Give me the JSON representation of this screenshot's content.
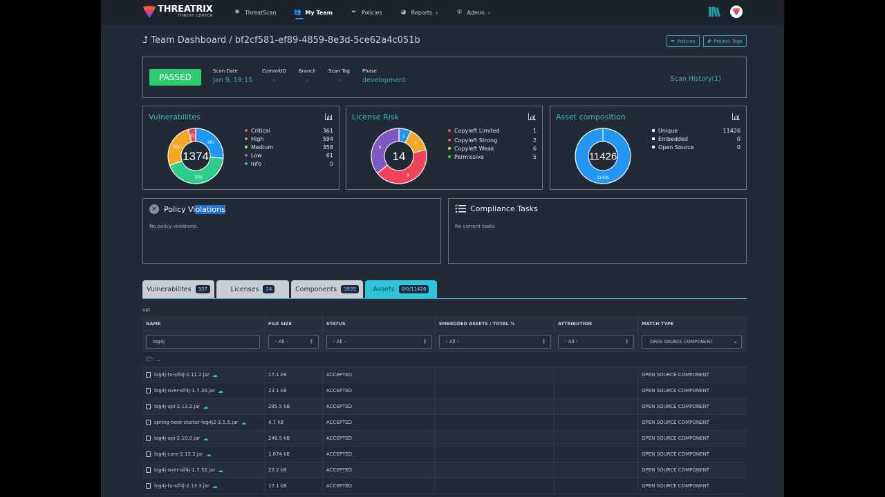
{
  "brand": {
    "title": "THREATRIX",
    "subtitle": "THREAT CENTER"
  },
  "nav": [
    {
      "label": "ThreatScan",
      "icon": "brain-icon"
    },
    {
      "label": "My Team",
      "icon": "users-icon",
      "active": true
    },
    {
      "label": "Policies",
      "icon": "feather-icon"
    },
    {
      "label": "Reports",
      "icon": "pie-chart-icon",
      "chevron": true
    },
    {
      "label": "Admin",
      "icon": "users-cog-icon",
      "chevron": true
    }
  ],
  "header": {
    "title": "Team Dashboard / bf2cf581-ef89-4859-8e3d-5ce62a4c051b",
    "policies_button": "Policies",
    "project_tags_button": "Project Tags"
  },
  "scan": {
    "status": "PASSED",
    "scan_date_label": "Scan Date",
    "scan_date": "Jan 9, 19:15",
    "commit_label": "CommitID",
    "commit": "-",
    "branch_label": "Branch",
    "branch": "-",
    "scan_tag_label": "Scan Tag",
    "scan_tag": "-",
    "phase_label": "Phase",
    "phase": "development",
    "history": "Scan History(1)"
  },
  "chart_data": [
    {
      "type": "pie",
      "title": "Vulnerabilites",
      "center_label": "1374",
      "categories": [
        "Critical",
        "High",
        "Medium",
        "Low",
        "Info"
      ],
      "values": [
        361,
        594,
        358,
        61,
        0
      ],
      "colors": [
        "#ee5a6f",
        "#f08a4b",
        "#d4e157",
        "#b84fd6",
        "#26c6da"
      ],
      "slices": [
        {
          "value": 361,
          "color": "#2196f3"
        },
        {
          "value": 594,
          "color": "#2ecc8a"
        },
        {
          "value": 358,
          "color": "#f5a623"
        },
        {
          "value": 61,
          "color": "#f0445b"
        }
      ]
    },
    {
      "type": "pie",
      "title": "License Risk",
      "center_label": "14",
      "categories": [
        "Copyleft Limited",
        "Copyleft Strong",
        "Copyleft Weak",
        "Permissive"
      ],
      "values": [
        1,
        2,
        6,
        5
      ],
      "colors": [
        "#ee5a6f",
        "#ee5a6f",
        "#d4e157",
        "#2ecc71"
      ],
      "slices": [
        {
          "value": 1,
          "color": "#2196f3"
        },
        {
          "value": 2,
          "color": "#f5a623"
        },
        {
          "value": 6,
          "color": "#f0445b"
        },
        {
          "value": 5,
          "color": "#7e57c2"
        }
      ]
    },
    {
      "type": "pie",
      "title": "Asset composition",
      "center_label": "11426",
      "categories": [
        "Unique",
        "Embedded",
        "Open Source"
      ],
      "values": [
        11426,
        0,
        0
      ],
      "colors": [
        "#ffffff",
        "#ffffff",
        "#ffffff"
      ],
      "slices": [
        {
          "value": 11426,
          "color": "#2196f3"
        }
      ]
    }
  ],
  "policy": {
    "title_a": "Policy Vi",
    "title_b": "olations",
    "message": "No policy violations."
  },
  "compliance": {
    "title": "Compliance Tasks",
    "message": "No current tasks."
  },
  "tabs": [
    {
      "label": "Vulnerabilites",
      "badge": "337"
    },
    {
      "label": "Licenses",
      "badge": "14"
    },
    {
      "label": "Components",
      "badge": "3839"
    },
    {
      "label": "Assets",
      "badge": "0/0/11426",
      "active": true
    }
  ],
  "breadcrumb": "opt",
  "table": {
    "columns": [
      "NAME",
      "FILE SIZE",
      "STATUS",
      "EMBEDDED ASSETS / TOTAL %",
      "ATTRIBUTION",
      "MATCH TYPE"
    ],
    "filters": {
      "name": "log4j",
      "file_size": "- All -",
      "status": "- All -",
      "embedded": "- All -",
      "attribution": "- All -",
      "match_type": "OPEN SOURCE COMPONENT"
    },
    "parent_folder": "...",
    "rows": [
      {
        "name": "log4j-to-slf4j-2.11.2.jar",
        "size": "17.1 kB",
        "status": "ACCEPTED",
        "embedded": "",
        "attribution": "",
        "match": "OPEN SOURCE COMPONENT"
      },
      {
        "name": "log4j-over-slf4j-1.7.30.jar",
        "size": "23.1 kB",
        "status": "ACCEPTED",
        "embedded": "",
        "attribution": "",
        "match": "OPEN SOURCE COMPONENT"
      },
      {
        "name": "log4j-api-2.13.2.jar",
        "size": "285.5 kB",
        "status": "ACCEPTED",
        "embedded": "",
        "attribution": "",
        "match": "OPEN SOURCE COMPONENT"
      },
      {
        "name": "spring-boot-starter-log4j2-2.5.5.jar",
        "size": "4.7 kB",
        "status": "ACCEPTED",
        "embedded": "",
        "attribution": "",
        "match": "OPEN SOURCE COMPONENT"
      },
      {
        "name": "log4j-api-2.10.0.jar",
        "size": "249.5 kB",
        "status": "ACCEPTED",
        "embedded": "",
        "attribution": "",
        "match": "OPEN SOURCE COMPONENT"
      },
      {
        "name": "log4j-core-2.13.2.jar",
        "size": "1,674 kB",
        "status": "ACCEPTED",
        "embedded": "",
        "attribution": "",
        "match": "OPEN SOURCE COMPONENT"
      },
      {
        "name": "log4j-over-slf4j-1.7.32.jar",
        "size": "23.2 kB",
        "status": "ACCEPTED",
        "embedded": "",
        "attribution": "",
        "match": "OPEN SOURCE COMPONENT"
      },
      {
        "name": "log4j-to-slf4j-2.13.3.jar",
        "size": "17.1 kB",
        "status": "ACCEPTED",
        "embedded": "",
        "attribution": "",
        "match": "OPEN SOURCE COMPONENT"
      }
    ]
  }
}
